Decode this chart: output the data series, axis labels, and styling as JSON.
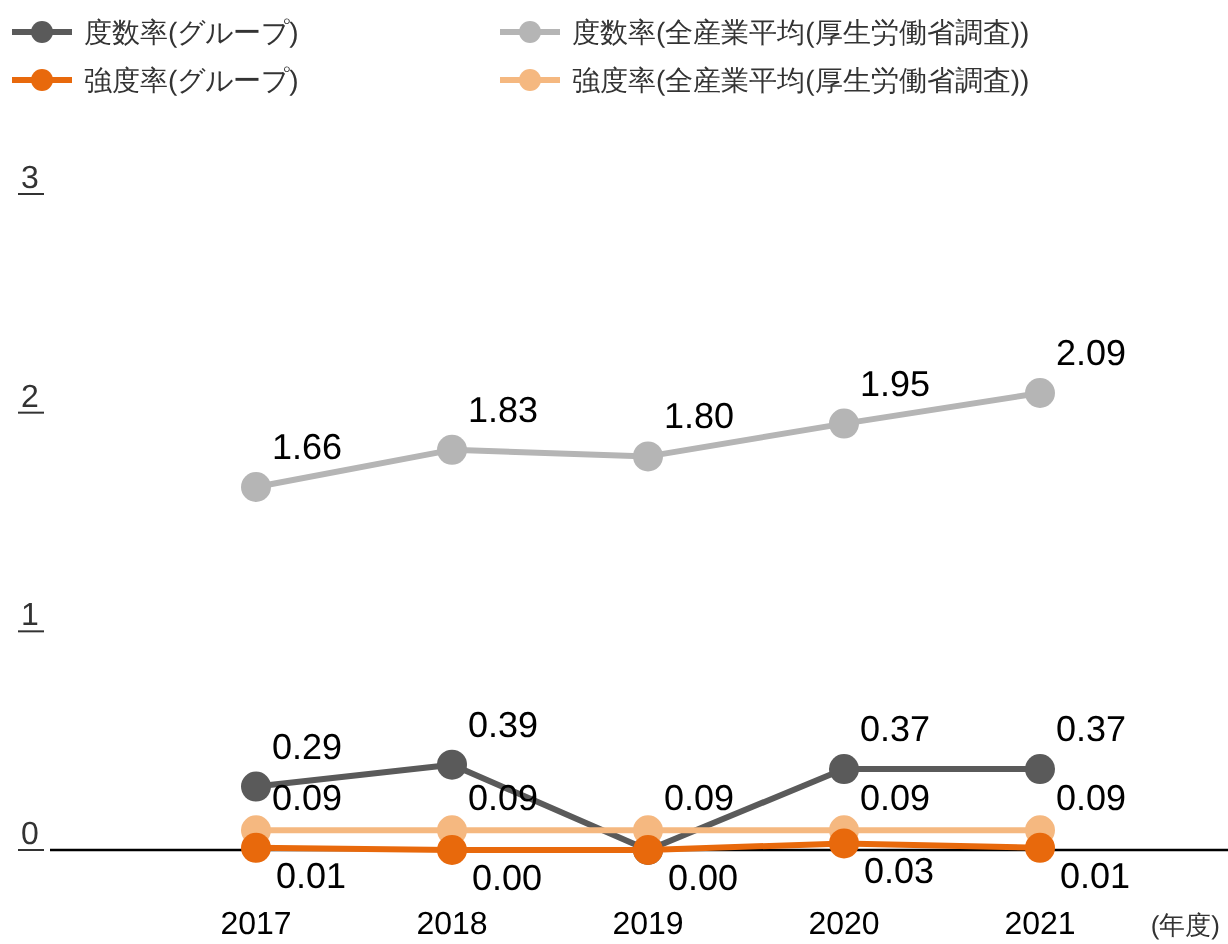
{
  "chart_data": {
    "type": "line",
    "xlabel": "(年度)",
    "categories": [
      "2017",
      "2018",
      "2019",
      "2020",
      "2021"
    ],
    "ylim": [
      0,
      3
    ],
    "yticks": [
      0,
      1,
      2,
      3
    ],
    "grid": false,
    "legend": "top left",
    "marker": "circle",
    "series": [
      {
        "name": "度数率(全産業平均(厚生労働省調査))",
        "color": "#b5b5b5",
        "values": [
          1.66,
          1.83,
          1.8,
          1.95,
          2.09
        ],
        "value_labels": [
          "1.66",
          "1.83",
          "1.80",
          "1.95",
          "2.09"
        ]
      },
      {
        "name": "度数率(グループ)",
        "color": "#5a5a5a",
        "values": [
          0.29,
          0.39,
          0,
          0.37,
          0.37
        ],
        "value_labels": [
          "0.29",
          "0.39",
          null,
          "0.37",
          "0.37"
        ]
      },
      {
        "name": "強度率(全産業平均(厚生労働省調査))",
        "color": "#f5b880",
        "values": [
          0.09,
          0.09,
          0.09,
          0.09,
          0.09
        ],
        "value_labels": [
          "0.09",
          "0.09",
          "0.09",
          "0.09",
          "0.09"
        ]
      },
      {
        "name": "強度率(グループ)",
        "color": "#e8690c",
        "values": [
          0.01,
          0.0,
          0.0,
          0.03,
          0.01
        ],
        "value_labels": [
          "0.01",
          "0.00",
          "0.00",
          "0.03",
          "0.01"
        ]
      }
    ]
  }
}
